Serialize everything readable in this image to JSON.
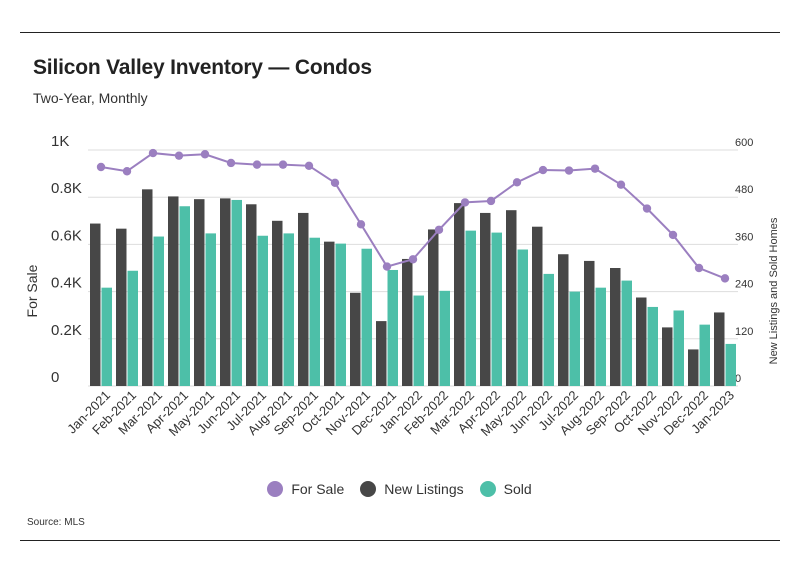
{
  "title": "Silicon Valley Inventory — Condos",
  "subtitle": "Two-Year, Monthly",
  "source": "Source:  MLS",
  "colors": {
    "for_sale": "#9b7fc0",
    "new_listings": "#474747",
    "sold": "#4dbfa8",
    "grid": "#dddddd",
    "text": "#333333"
  },
  "chart_data": {
    "type": "bar",
    "categories": [
      "Jan-2021",
      "Feb-2021",
      "Mar-2021",
      "Apr-2021",
      "May-2021",
      "Jun-2021",
      "Jul-2021",
      "Aug-2021",
      "Sep-2021",
      "Oct-2021",
      "Nov-2021",
      "Dec-2021",
      "Jan-2022",
      "Feb-2022",
      "Mar-2022",
      "Apr-2022",
      "May-2022",
      "Jun-2022",
      "Jul-2022",
      "Aug-2022",
      "Sep-2022",
      "Oct-2022",
      "Nov-2022",
      "Dec-2022",
      "Jan-2023"
    ],
    "ylabel": "For Sale",
    "y2label": "New Listings and Sold Homes",
    "ylim": [
      0,
      1000
    ],
    "y2lim": [
      0,
      600
    ],
    "yticks": [
      "0",
      "0.2K",
      "0.4K",
      "0.6K",
      "0.8K",
      "1K"
    ],
    "y2ticks": [
      "0",
      "120",
      "240",
      "360",
      "480",
      "600"
    ],
    "grid": true,
    "legend": "bottom",
    "series": [
      {
        "name": "For Sale",
        "type": "line",
        "axis": "left",
        "values": [
          928,
          910,
          987,
          976,
          982,
          945,
          938,
          938,
          933,
          861,
          685,
          506,
          537,
          662,
          778,
          784,
          863,
          915,
          913,
          921,
          853,
          752,
          640,
          500,
          456
        ]
      },
      {
        "name": "New Listings",
        "type": "bar",
        "axis": "right",
        "values": [
          413,
          400,
          500,
          482,
          475,
          477,
          462,
          420,
          440,
          367,
          237,
          165,
          323,
          398,
          465,
          440,
          447,
          405,
          335,
          318,
          300,
          225,
          149,
          93,
          187
        ]
      },
      {
        "name": "Sold",
        "type": "bar",
        "axis": "right",
        "values": [
          250,
          293,
          380,
          457,
          388,
          473,
          382,
          388,
          377,
          362,
          349,
          295,
          230,
          242,
          395,
          390,
          347,
          285,
          240,
          250,
          268,
          201,
          192,
          156,
          107
        ]
      }
    ]
  }
}
